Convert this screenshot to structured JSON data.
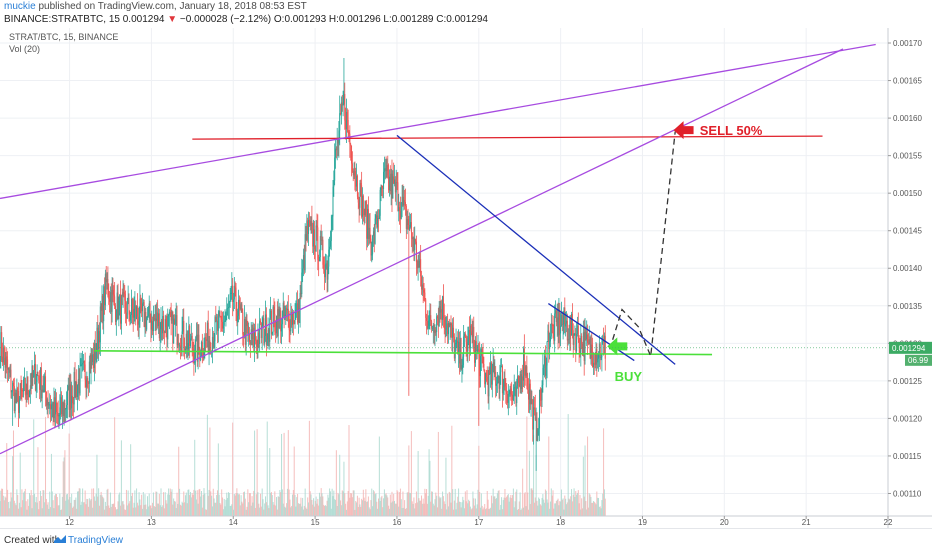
{
  "header": {
    "user": "muckie",
    "published": "published on TradingView.com, January 18, 2018 08:53 EST",
    "symbol": "BINANCE:STRATBTC, 15",
    "last": "0.001294",
    "change_arrow": "▼",
    "change": "−0.000028 (−2.12%)",
    "ohlc": "O:0.001293 H:0.001296 L:0.001289 C:0.001294"
  },
  "legend": {
    "title": "STRAT/BTC, 15, BINANCE",
    "vol": "Vol (20)"
  },
  "footer": {
    "created": "Created with",
    "brand": "TradingView"
  },
  "colors": {
    "up": "#26a69a",
    "down": "#ef5350",
    "support": "#4be03a",
    "resistance": "#e0202a",
    "trend": "#1b2fb8",
    "channel": "#a74be0",
    "projection": "#333333",
    "price_badge": "#3cab64"
  },
  "chart_data": {
    "type": "candlestick",
    "x_ticks": [
      "12",
      "13",
      "14",
      "15",
      "16",
      "17",
      "18",
      "19",
      "20",
      "21",
      "22"
    ],
    "y_ticks": [
      "0.00170",
      "0.00165",
      "0.00160",
      "0.00155",
      "0.00150",
      "0.00145",
      "0.00140",
      "0.00135",
      "0.00130",
      "0.00125",
      "0.00120",
      "0.00115",
      "0.00110"
    ],
    "y_range": [
      0.00107,
      0.00172
    ],
    "x_range": [
      11.15,
      22.0
    ],
    "price_label": "0.001294",
    "volume_label": "06.99",
    "anchors": [
      [
        11.15,
        0.0013
      ],
      [
        11.35,
        0.00122
      ],
      [
        11.6,
        0.00126
      ],
      [
        11.85,
        0.0012
      ],
      [
        12.0,
        0.00123
      ],
      [
        12.3,
        0.00128
      ],
      [
        12.45,
        0.00138
      ],
      [
        12.55,
        0.00135
      ],
      [
        12.8,
        0.00134
      ],
      [
        13.3,
        0.00132
      ],
      [
        13.55,
        0.00129
      ],
      [
        13.9,
        0.00133
      ],
      [
        14.0,
        0.00136
      ],
      [
        14.2,
        0.0013
      ],
      [
        14.5,
        0.00133
      ],
      [
        14.8,
        0.00134
      ],
      [
        14.9,
        0.00145
      ],
      [
        15.0,
        0.00144
      ],
      [
        15.15,
        0.0014
      ],
      [
        15.25,
        0.00155
      ],
      [
        15.35,
        0.00162
      ],
      [
        15.5,
        0.00152
      ],
      [
        15.7,
        0.00143
      ],
      [
        15.85,
        0.00152
      ],
      [
        16.0,
        0.0015
      ],
      [
        16.2,
        0.00144
      ],
      [
        16.4,
        0.00132
      ],
      [
        16.55,
        0.00135
      ],
      [
        16.75,
        0.00128
      ],
      [
        16.9,
        0.00131
      ],
      [
        17.1,
        0.00125
      ],
      [
        17.25,
        0.00126
      ],
      [
        17.45,
        0.00122
      ],
      [
        17.55,
        0.00128
      ],
      [
        17.7,
        0.00118
      ],
      [
        17.85,
        0.00131
      ],
      [
        18.0,
        0.00133
      ],
      [
        18.2,
        0.00131
      ],
      [
        18.35,
        0.00129
      ],
      [
        18.55,
        0.001294
      ]
    ],
    "spikes": [
      [
        15.35,
        0.00168
      ],
      [
        15.3,
        0.00163
      ],
      [
        17.7,
        0.00113
      ],
      [
        16.15,
        0.00123
      ],
      [
        17.0,
        0.00119
      ],
      [
        11.3,
        0.00119
      ]
    ],
    "annotations": [
      {
        "id": "resistance-line",
        "kind": "line",
        "color": "resistance",
        "x1": 13.5,
        "y1": 0.001572,
        "x2": 21.2,
        "y2": 0.001576
      },
      {
        "id": "support-line",
        "kind": "line",
        "color": "support",
        "x1": 12.3,
        "y1": 0.00129,
        "x2": 19.85,
        "y2": 0.001285
      },
      {
        "id": "channel-upper-line",
        "kind": "line",
        "color": "channel",
        "x1": 11.15,
        "y1": 0.001493,
        "x2": 21.85,
        "y2": 0.001698
      },
      {
        "id": "channel-lower-line",
        "kind": "line",
        "color": "channel",
        "x1": 11.15,
        "y1": 0.001153,
        "x2": 21.45,
        "y2": 0.001692
      },
      {
        "id": "downtrend-line",
        "kind": "line",
        "color": "trend",
        "x1": 16.0,
        "y1": 0.001577,
        "x2": 19.4,
        "y2": 0.001272
      },
      {
        "id": "short-trend-line",
        "kind": "line",
        "color": "trend",
        "x1": 17.85,
        "y1": 0.001353,
        "x2": 18.9,
        "y2": 0.001277
      }
    ],
    "projection": [
      [
        18.6,
        0.001292
      ],
      [
        18.75,
        0.001345
      ],
      [
        18.95,
        0.001322
      ],
      [
        19.1,
        0.001283
      ],
      [
        19.4,
        0.001582
      ]
    ],
    "labels": [
      {
        "id": "sell-label",
        "text": "SELL 50%",
        "color": "resistance",
        "x": 19.7,
        "y": 0.001583
      },
      {
        "id": "buy-label",
        "text": "BUY",
        "color": "support",
        "x": 18.66,
        "y": 0.001255
      }
    ]
  }
}
